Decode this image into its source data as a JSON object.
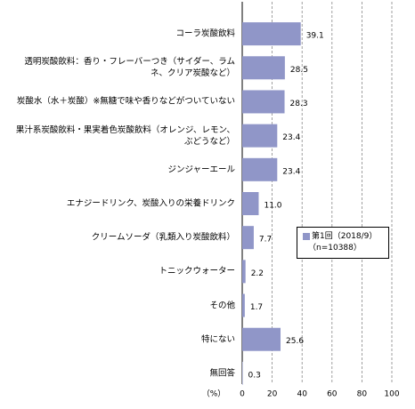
{
  "chart_data": {
    "type": "bar",
    "orientation": "horizontal",
    "categories": [
      "コーラ炭酸飲料",
      "透明炭酸飲料：香り・フレーバーつき（サイダー、ラムネ、クリア炭酸など）",
      "炭酸水（水＋炭酸）※無糖で味や香りなどがついていない",
      "果汁系炭酸飲料・果実着色炭酸飲料（オレンジ、レモン、ぶどうなど）",
      "ジンジャーエール",
      "エナジードリンク、炭酸入りの栄養ドリンク",
      "クリームソーダ（乳類入り炭酸飲料）",
      "トニックウォーター",
      "その他",
      "特にない",
      "無回答"
    ],
    "series": [
      {
        "name": "第1回（2018/9）",
        "color": "#9096c8",
        "values": [
          39.1,
          28.5,
          28.3,
          23.4,
          23.4,
          11.0,
          7.7,
          2.2,
          1.7,
          25.6,
          0.3
        ],
        "value_labels": [
          "39.1",
          "28.5",
          "28.3",
          "23.4",
          "23.4",
          "11.0",
          "7.7",
          "2.2",
          "1.7",
          "25.6",
          "0.3"
        ]
      }
    ],
    "legend_note": "（n=10388）",
    "x_label": "（%）",
    "xlim": [
      0,
      100
    ],
    "xticks": [
      0,
      20,
      40,
      60,
      80,
      100
    ],
    "grid": true
  }
}
